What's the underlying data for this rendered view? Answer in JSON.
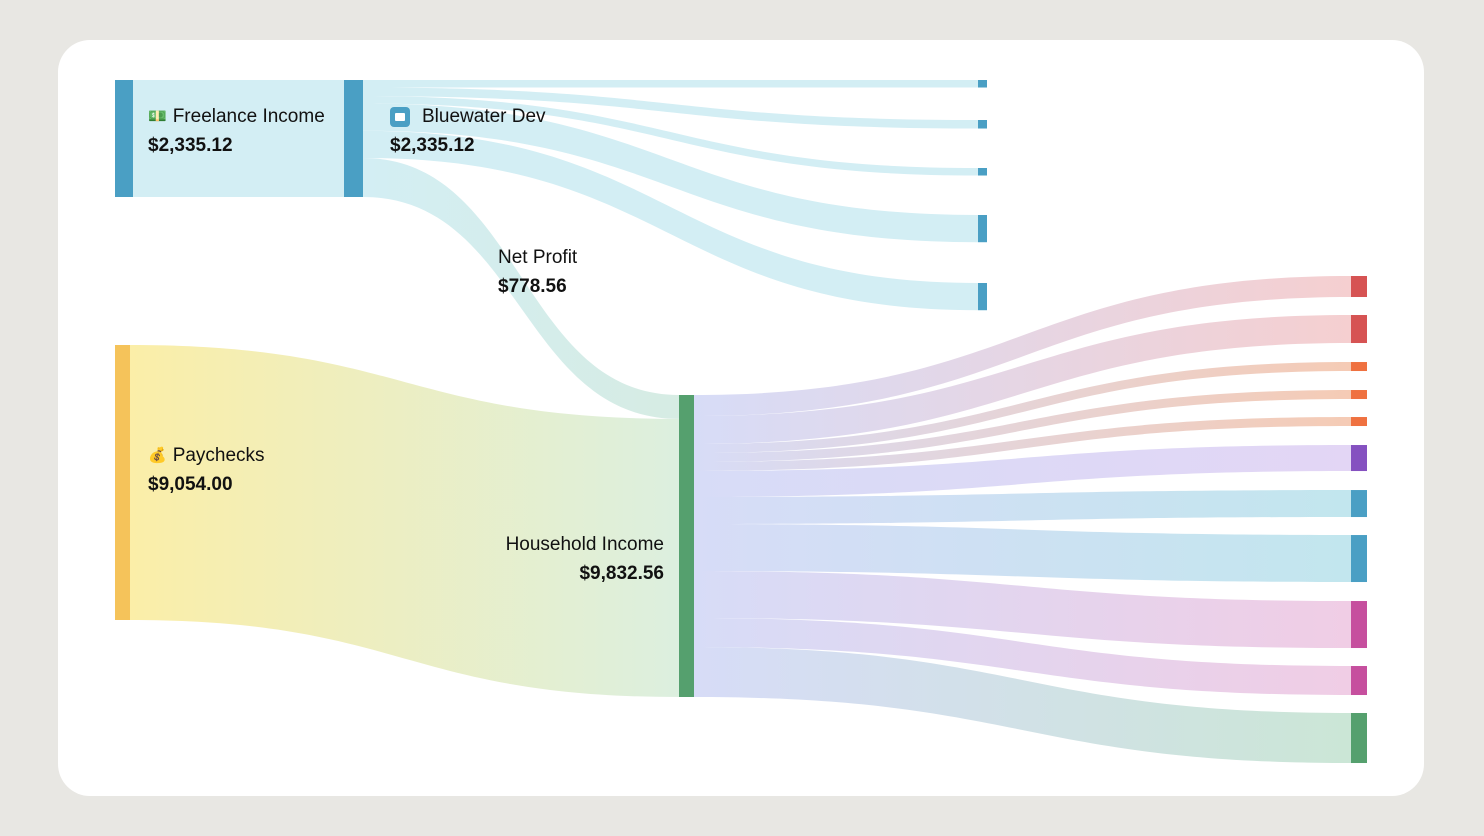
{
  "chart_data": {
    "type": "sankey",
    "title": "",
    "nodes": [
      {
        "id": "freelance",
        "label": "Freelance Income",
        "value_label": "$2,335.12",
        "value": 2335.12,
        "icon": "money-bill-icon",
        "color": "#4a9fc4"
      },
      {
        "id": "bluewater",
        "label": "Bluewater Dev",
        "value_label": "$2,335.12",
        "value": 2335.12,
        "icon": "folder-icon",
        "color": "#4a9fc4"
      },
      {
        "id": "netprofit",
        "label": "Net Profit",
        "value_label": "$778.56",
        "value": 778.56
      },
      {
        "id": "paychecks",
        "label": "Paychecks",
        "value_label": "$9,054.00",
        "value": 9054.0,
        "icon": "money-bag-icon",
        "color": "#f5c35a"
      },
      {
        "id": "household",
        "label": "Household Income",
        "value_label": "$9,832.56",
        "value": 9832.56,
        "color": "#55a06e"
      }
    ],
    "business_expenses": [
      {
        "value": 150,
        "color": "#4a9fc4"
      },
      {
        "value": 170,
        "color": "#4a9fc4"
      },
      {
        "value": 150,
        "color": "#4a9fc4"
      },
      {
        "value": 543.28,
        "color": "#4a9fc4"
      },
      {
        "value": 543.28,
        "color": "#4a9fc4"
      }
    ],
    "household_outflows": [
      {
        "value": 684,
        "color": "#d65353",
        "light": "#f5cfd0"
      },
      {
        "value": 912,
        "color": "#d65353",
        "light": "#f5cfd0"
      },
      {
        "value": 293,
        "color": "#ef7140",
        "light": "#f5cbb5"
      },
      {
        "value": 293,
        "color": "#ef7140",
        "light": "#f5cbb5"
      },
      {
        "value": 293,
        "color": "#ef7140",
        "light": "#f5cbb5"
      },
      {
        "value": 847,
        "color": "#8551c0",
        "light": "#e3d6f5"
      },
      {
        "value": 879,
        "color": "#4a9fc4",
        "light": "#c2e6ee"
      },
      {
        "value": 1530,
        "color": "#4a9fc4",
        "light": "#c2e6ee"
      },
      {
        "value": 1530,
        "color": "#c64f9e",
        "light": "#f0cde5"
      },
      {
        "value": 944,
        "color": "#c64f9e",
        "light": "#f0cde5"
      },
      {
        "value": 1628,
        "color": "#55a06e",
        "light": "#cbe6d6"
      }
    ]
  }
}
